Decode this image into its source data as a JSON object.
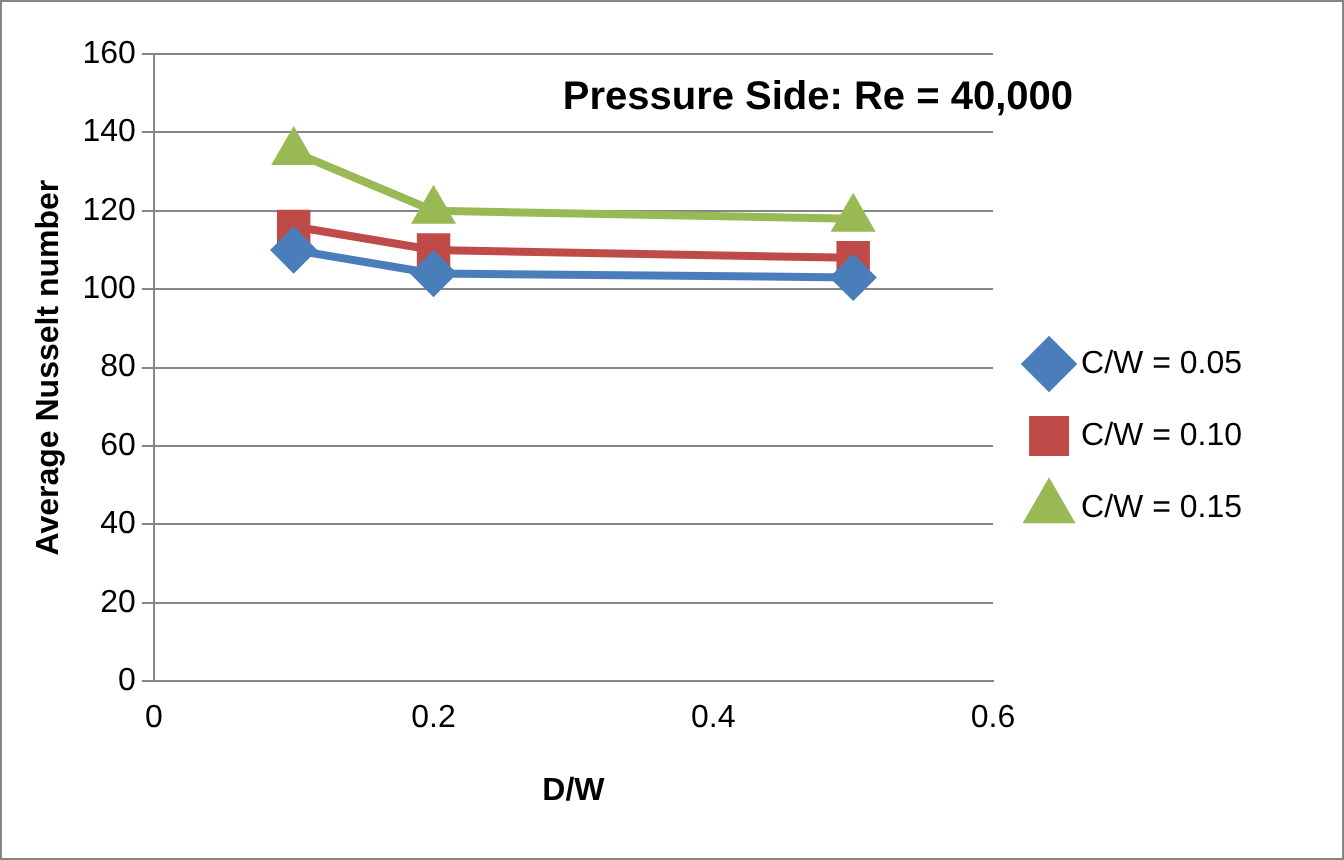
{
  "chart_data": {
    "type": "line",
    "title": "Pressure Side: Re = 40,000",
    "xlabel": "D/W",
    "ylabel": "Average Nusselt number",
    "x": [
      0.1,
      0.2,
      0.5
    ],
    "series": [
      {
        "name": "C/W = 0.05",
        "color": "#4a7ebb",
        "values": [
          110,
          104,
          103
        ],
        "marker": "diamond"
      },
      {
        "name": "C/W = 0.10",
        "color": "#be4b48",
        "values": [
          116,
          110,
          108
        ],
        "marker": "square"
      },
      {
        "name": "C/W = 0.15",
        "color": "#98b954",
        "values": [
          135,
          120,
          118
        ],
        "marker": "triangle"
      }
    ],
    "xlim": [
      0,
      0.6
    ],
    "xticks": [
      0,
      0.2,
      0.4,
      0.6
    ],
    "ylim": [
      0,
      160
    ],
    "yticks": [
      0,
      20,
      40,
      60,
      80,
      100,
      120,
      140,
      160
    ],
    "grid": "y",
    "legend": "right"
  }
}
